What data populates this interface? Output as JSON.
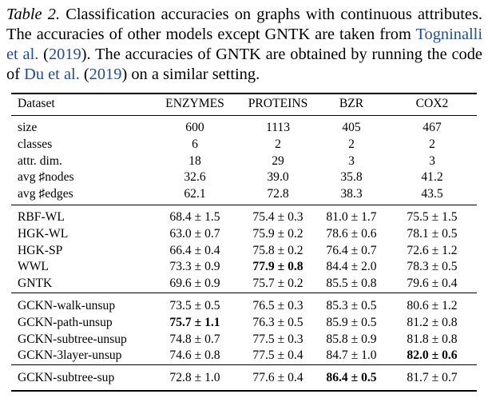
{
  "caption": {
    "label": "Table 2.",
    "text1": "Classification accuracies on graphs with continuous attributes. The accuracies of other models except GNTK are taken from",
    "cite1_authors": "Togninalli et al.",
    "cite1_year": "2019",
    "text2": "The accuracies of GNTK are obtained by running the code of",
    "cite2_authors": "Du et al.",
    "cite2_year": "2019",
    "text3": "on a similar setting."
  },
  "table": {
    "header": [
      "Dataset",
      "ENZYMES",
      "PROTEINS",
      "BZR",
      "COX2"
    ],
    "stats": [
      [
        "size",
        "600",
        "1113",
        "405",
        "467"
      ],
      [
        "classes",
        "6",
        "2",
        "2",
        "2"
      ],
      [
        "attr. dim.",
        "18",
        "29",
        "3",
        "3"
      ],
      [
        "avg ♯nodes",
        "32.6",
        "39.0",
        "35.8",
        "41.2"
      ],
      [
        "avg ♯edges",
        "62.1",
        "72.8",
        "38.3",
        "43.5"
      ]
    ],
    "baselines": [
      [
        "RBF-WL",
        "68.4 ± 1.5",
        "75.4 ± 0.3",
        "81.0 ± 1.7",
        "75.5 ± 1.5"
      ],
      [
        "HGK-WL",
        "63.0 ± 0.7",
        "75.9 ± 0.2",
        "78.6 ± 0.6",
        "78.1 ± 0.5"
      ],
      [
        "HGK-SP",
        "66.4 ± 0.4",
        "75.8 ± 0.2",
        "76.4 ± 0.7",
        "72.6 ± 1.2"
      ],
      [
        "WWL",
        "73.3 ± 0.9",
        "77.9 ± 0.8",
        "84.4 ± 2.0",
        "78.3 ± 0.5"
      ],
      [
        "GNTK",
        "69.6 ± 0.9",
        "75.7 ± 0.2",
        "85.5 ± 0.8",
        "79.6 ± 0.4"
      ]
    ],
    "unsup": [
      [
        "GCKN-walk-unsup",
        "73.5 ± 0.5",
        "76.5 ± 0.3",
        "85.3 ± 0.5",
        "80.6 ± 1.2"
      ],
      [
        "GCKN-path-unsup",
        "75.7 ± 1.1",
        "76.3 ± 0.5",
        "85.9 ± 0.5",
        "81.2 ± 0.8"
      ],
      [
        "GCKN-subtree-unsup",
        "74.8 ± 0.7",
        "77.5 ± 0.3",
        "85.8 ± 0.9",
        "81.8 ± 0.8"
      ],
      [
        "GCKN-3layer-unsup",
        "74.6 ± 0.8",
        "77.5 ± 0.4",
        "84.7 ± 1.0",
        "82.0 ± 0.6"
      ]
    ],
    "sup": [
      [
        "GCKN-subtree-sup",
        "72.8 ± 1.0",
        "77.6 ± 0.4",
        "86.4 ± 0.5",
        "81.7 ± 0.7"
      ]
    ]
  }
}
